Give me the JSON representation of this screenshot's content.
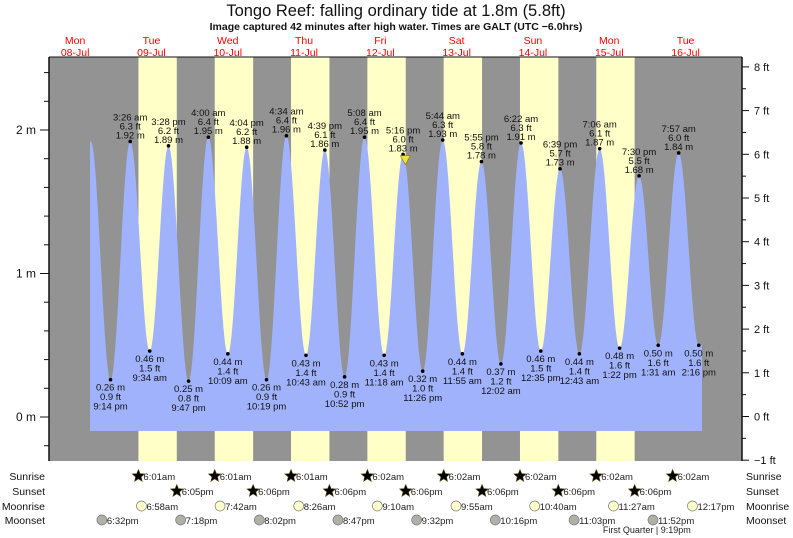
{
  "header": {
    "title": "Tongo Reef: falling  ordinary tide at 1.8m (5.8ft)",
    "subtitle": "Image captured 42 minutes after high water. Times are GALT (UTC −6.0hrs)"
  },
  "colors": {
    "night": "#939393",
    "day": "#ffffc8",
    "water": "#a0b2fc",
    "day_label": "#ff0000",
    "sunrise": "#b5b038",
    "sunset": "#d9702a",
    "moonrise": "#ffffcc",
    "moonset": "#b0b0a8",
    "marker": "#f0e040"
  },
  "chart_data": {
    "type": "line",
    "title": "Tongo Reef: falling  ordinary tide at 1.8m (5.8ft)",
    "days": [
      {
        "name": "Mon",
        "date": "08-Jul"
      },
      {
        "name": "Tue",
        "date": "09-Jul"
      },
      {
        "name": "Wed",
        "date": "10-Jul"
      },
      {
        "name": "Thu",
        "date": "11-Jul"
      },
      {
        "name": "Fri",
        "date": "12-Jul"
      },
      {
        "name": "Sat",
        "date": "13-Jul"
      },
      {
        "name": "Sun",
        "date": "14-Jul"
      },
      {
        "name": "Mon",
        "date": "15-Jul"
      },
      {
        "name": "Tue",
        "date": "16-Jul"
      }
    ],
    "y_left": {
      "unit": "m",
      "range": [
        -0.3,
        2.5
      ],
      "ticks": [
        "0 m",
        "1 m",
        "2 m"
      ],
      "tick_values": [
        0,
        1,
        2
      ]
    },
    "y_right": {
      "unit": "ft",
      "range": [
        -1,
        8
      ],
      "ticks": [
        "−1 ft",
        "0 ft",
        "1 ft",
        "2 ft",
        "3 ft",
        "4 ft",
        "5 ft",
        "6 ft",
        "7 ft",
        "8 ft"
      ],
      "tick_values": [
        -1,
        0,
        1,
        2,
        3,
        4,
        5,
        6,
        7,
        8
      ]
    },
    "extremes": [
      {
        "type": "low",
        "day": 0,
        "time": "9:14 pm",
        "m": "0.26 m",
        "ft": "0.9 ft",
        "value": 0.26
      },
      {
        "type": "high",
        "day": 1,
        "time": "3:26 am",
        "m": "1.92 m",
        "ft": "6.3 ft",
        "value": 1.92
      },
      {
        "type": "low",
        "day": 1,
        "time": "9:34 am",
        "m": "0.46 m",
        "ft": "1.5 ft",
        "value": 0.46
      },
      {
        "type": "high",
        "day": 1,
        "time": "3:28 pm",
        "m": "1.89 m",
        "ft": "6.2 ft",
        "value": 1.89
      },
      {
        "type": "low",
        "day": 1,
        "time": "9:47 pm",
        "m": "0.25 m",
        "ft": "0.8 ft",
        "value": 0.25
      },
      {
        "type": "high",
        "day": 2,
        "time": "4:00 am",
        "m": "1.95 m",
        "ft": "6.4 ft",
        "value": 1.95
      },
      {
        "type": "low",
        "day": 2,
        "time": "10:09 am",
        "m": "0.44 m",
        "ft": "1.4 ft",
        "value": 0.44
      },
      {
        "type": "high",
        "day": 2,
        "time": "4:04 pm",
        "m": "1.88 m",
        "ft": "6.2 ft",
        "value": 1.88
      },
      {
        "type": "low",
        "day": 2,
        "time": "10:19 pm",
        "m": "0.26 m",
        "ft": "0.9 ft",
        "value": 0.26
      },
      {
        "type": "high",
        "day": 3,
        "time": "4:34 am",
        "m": "1.96 m",
        "ft": "6.4 ft",
        "value": 1.96
      },
      {
        "type": "low",
        "day": 3,
        "time": "10:43 am",
        "m": "0.43 m",
        "ft": "1.4 ft",
        "value": 0.43
      },
      {
        "type": "high",
        "day": 3,
        "time": "4:39 pm",
        "m": "1.86 m",
        "ft": "6.1 ft",
        "value": 1.86
      },
      {
        "type": "low",
        "day": 3,
        "time": "10:52 pm",
        "m": "0.28 m",
        "ft": "0.9 ft",
        "value": 0.28
      },
      {
        "type": "high",
        "day": 4,
        "time": "5:08 am",
        "m": "1.95 m",
        "ft": "6.4 ft",
        "value": 1.95
      },
      {
        "type": "low",
        "day": 4,
        "time": "11:18 am",
        "m": "0.43 m",
        "ft": "1.4 ft",
        "value": 0.43
      },
      {
        "type": "high",
        "day": 4,
        "time": "5:16 pm",
        "m": "1.83 m",
        "ft": "6.0 ft",
        "value": 1.83
      },
      {
        "type": "low",
        "day": 4,
        "time": "11:26 pm",
        "m": "0.32 m",
        "ft": "1.0 ft",
        "value": 0.32
      },
      {
        "type": "high",
        "day": 5,
        "time": "5:44 am",
        "m": "1.93 m",
        "ft": "6.3 ft",
        "value": 1.93
      },
      {
        "type": "low",
        "day": 5,
        "time": "11:55 am",
        "m": "0.44 m",
        "ft": "1.4 ft",
        "value": 0.44
      },
      {
        "type": "high",
        "day": 5,
        "time": "5:55 pm",
        "m": "1.78 m",
        "ft": "5.8 ft",
        "value": 1.78
      },
      {
        "type": "low",
        "day": 6,
        "time": "12:02 am",
        "m": "0.37 m",
        "ft": "1.2 ft",
        "value": 0.37
      },
      {
        "type": "high",
        "day": 6,
        "time": "6:22 am",
        "m": "1.91 m",
        "ft": "6.3 ft",
        "value": 1.91
      },
      {
        "type": "low",
        "day": 6,
        "time": "12:35 pm",
        "m": "0.46 m",
        "ft": "1.5 ft",
        "value": 0.46
      },
      {
        "type": "high",
        "day": 6,
        "time": "6:39 pm",
        "m": "1.73 m",
        "ft": "5.7 ft",
        "value": 1.73
      },
      {
        "type": "low",
        "day": 7,
        "time": "12:43 am",
        "m": "0.44 m",
        "ft": "1.4 ft",
        "value": 0.44
      },
      {
        "type": "high",
        "day": 7,
        "time": "7:06 am",
        "m": "1.87 m",
        "ft": "6.1 ft",
        "value": 1.87
      },
      {
        "type": "low",
        "day": 7,
        "time": "1:22 pm",
        "m": "0.48 m",
        "ft": "1.6 ft",
        "value": 0.48
      },
      {
        "type": "high",
        "day": 7,
        "time": "7:30 pm",
        "m": "1.68 m",
        "ft": "5.5 ft",
        "value": 1.68
      },
      {
        "type": "low",
        "day": 8,
        "time": "1:31 am",
        "m": "0.50 m",
        "ft": "1.6 ft",
        "value": 0.5
      },
      {
        "type": "high",
        "day": 8,
        "time": "7:57 am",
        "m": "1.84 m",
        "ft": "6.0 ft",
        "value": 1.84
      },
      {
        "type": "low",
        "day": 8,
        "time": "2:16 pm",
        "m": "0.50 m",
        "ft": "1.6 ft",
        "value": 0.5
      }
    ],
    "current": {
      "day": 4,
      "time": "5:58 pm",
      "value": 1.8
    }
  },
  "almanac": {
    "labels": {
      "sunrise": "Sunrise",
      "sunset": "Sunset",
      "moonrise": "Moonrise",
      "moonset": "Moonset"
    },
    "sunrise": [
      {
        "day": 1,
        "time": "6:01am"
      },
      {
        "day": 2,
        "time": "6:01am"
      },
      {
        "day": 3,
        "time": "6:01am"
      },
      {
        "day": 4,
        "time": "6:02am"
      },
      {
        "day": 5,
        "time": "6:02am"
      },
      {
        "day": 6,
        "time": "6:02am"
      },
      {
        "day": 7,
        "time": "6:02am"
      },
      {
        "day": 8,
        "time": "6:02am"
      }
    ],
    "sunset": [
      {
        "day": 1,
        "time": "6:05pm"
      },
      {
        "day": 2,
        "time": "6:06pm"
      },
      {
        "day": 3,
        "time": "6:06pm"
      },
      {
        "day": 4,
        "time": "6:06pm"
      },
      {
        "day": 5,
        "time": "6:06pm"
      },
      {
        "day": 6,
        "time": "6:06pm"
      },
      {
        "day": 7,
        "time": "6:06pm"
      }
    ],
    "moonrise": [
      {
        "day": 1,
        "time": "6:58am"
      },
      {
        "day": 2,
        "time": "7:42am"
      },
      {
        "day": 3,
        "time": "8:26am"
      },
      {
        "day": 4,
        "time": "9:10am"
      },
      {
        "day": 5,
        "time": "9:55am"
      },
      {
        "day": 6,
        "time": "10:40am"
      },
      {
        "day": 7,
        "time": "11:27am"
      },
      {
        "day": 8,
        "time": "12:17pm"
      }
    ],
    "moonset": [
      {
        "day": 0,
        "time": "6:32pm"
      },
      {
        "day": 1,
        "time": "7:18pm"
      },
      {
        "day": 2,
        "time": "8:02pm"
      },
      {
        "day": 3,
        "time": "8:47pm"
      },
      {
        "day": 4,
        "time": "9:32pm"
      },
      {
        "day": 5,
        "time": "10:16pm"
      },
      {
        "day": 6,
        "time": "11:03pm"
      },
      {
        "day": 7,
        "time": "11:52pm"
      }
    ],
    "moon_phase": {
      "day": 7,
      "time": "9:19pm",
      "label": "First Quarter | 9:19pm"
    }
  }
}
